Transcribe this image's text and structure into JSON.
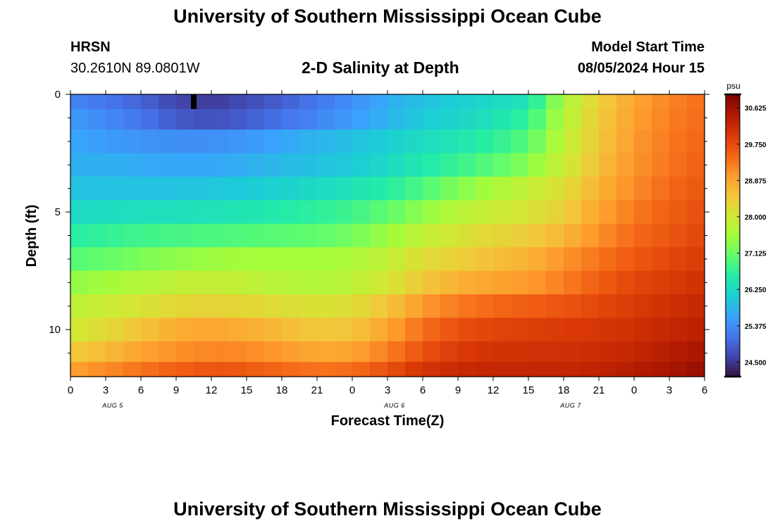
{
  "header": {
    "title": "University of Southern Mississippi Ocean Cube",
    "station": "HRSN",
    "coordinates": "30.2610N  89.0801W",
    "subtitle": "2-D Salinity at Depth",
    "model_start_label": "Model Start Time",
    "model_start_value": "08/05/2024 Hour 15",
    "bottom_title": "University of Southern Mississippi Ocean Cube"
  },
  "chart_data": {
    "type": "heatmap",
    "xlabel": "Forecast Time(Z)",
    "ylabel": "Depth (ft)",
    "x_tick_labels": [
      "0",
      "3",
      "6",
      "9",
      "12",
      "15",
      "18",
      "21",
      "0",
      "3",
      "6",
      "9",
      "12",
      "15",
      "18",
      "21",
      "0",
      "3",
      "6"
    ],
    "date_labels": [
      {
        "label": "AUG 5",
        "at_tick": 1.2
      },
      {
        "label": "AUG 6",
        "at_tick": 9.2
      },
      {
        "label": "AUG 7",
        "at_tick": 14.2
      }
    ],
    "y_tick_labels": [
      "0",
      "5",
      "10"
    ],
    "y_tick_values": [
      0,
      5,
      10
    ],
    "ylim": [
      0,
      12
    ],
    "xlim_hours": [
      0,
      54
    ],
    "depth_levels_ft": [
      0.25,
      1.0,
      2.0,
      3.0,
      4.0,
      5.0,
      6.0,
      7.0,
      8.0,
      9.0,
      10.0,
      11.0,
      11.75
    ],
    "time_hours": [
      0,
      3,
      6,
      9,
      12,
      15,
      18,
      21,
      24,
      27,
      30,
      33,
      36,
      39,
      42,
      45,
      48,
      51,
      54
    ],
    "salinity_psu": [
      [
        25.3,
        25.15,
        24.95,
        24.65,
        24.55,
        24.7,
        24.9,
        25.15,
        25.4,
        25.7,
        25.95,
        26.1,
        26.25,
        26.4,
        27.6,
        28.4,
        28.9,
        29.2,
        29.4
      ],
      [
        25.5,
        25.35,
        25.15,
        24.85,
        24.75,
        24.9,
        25.1,
        25.3,
        25.55,
        25.8,
        26.05,
        26.2,
        26.4,
        26.7,
        27.7,
        28.45,
        28.95,
        29.25,
        29.45
      ],
      [
        25.65,
        25.55,
        25.45,
        25.4,
        25.4,
        25.5,
        25.65,
        25.8,
        25.95,
        26.1,
        26.3,
        26.45,
        26.65,
        27.0,
        27.8,
        28.5,
        29.0,
        29.3,
        29.5
      ],
      [
        25.75,
        25.75,
        25.7,
        25.65,
        25.65,
        25.75,
        25.85,
        25.95,
        26.05,
        26.25,
        26.5,
        26.75,
        27.0,
        27.35,
        27.95,
        28.6,
        29.05,
        29.35,
        29.55
      ],
      [
        25.95,
        25.95,
        25.95,
        25.95,
        26.0,
        26.05,
        26.15,
        26.25,
        26.4,
        26.6,
        26.9,
        27.3,
        27.6,
        27.9,
        28.2,
        28.75,
        29.15,
        29.45,
        29.65
      ],
      [
        26.25,
        26.3,
        26.35,
        26.35,
        26.4,
        26.45,
        26.55,
        26.65,
        26.8,
        27.05,
        27.4,
        27.75,
        27.95,
        28.1,
        28.4,
        28.9,
        29.3,
        29.55,
        29.75
      ],
      [
        26.6,
        26.7,
        26.8,
        26.85,
        26.9,
        26.95,
        27.0,
        27.05,
        27.2,
        27.5,
        27.85,
        28.1,
        28.3,
        28.45,
        28.7,
        29.1,
        29.45,
        29.65,
        29.85
      ],
      [
        26.95,
        27.1,
        27.25,
        27.4,
        27.5,
        27.55,
        27.55,
        27.55,
        27.65,
        27.85,
        28.2,
        28.4,
        28.6,
        28.75,
        29.05,
        29.35,
        29.6,
        29.8,
        29.95
      ],
      [
        27.4,
        27.55,
        27.7,
        27.85,
        27.9,
        27.85,
        27.75,
        27.7,
        27.8,
        28.05,
        28.5,
        28.75,
        28.9,
        29.0,
        29.25,
        29.55,
        29.8,
        29.95,
        30.1
      ],
      [
        27.8,
        27.95,
        28.1,
        28.3,
        28.35,
        28.3,
        28.2,
        28.1,
        28.2,
        28.55,
        29.0,
        29.3,
        29.45,
        29.55,
        29.65,
        29.8,
        29.95,
        30.1,
        30.25
      ],
      [
        28.0,
        28.25,
        28.55,
        28.8,
        28.9,
        28.8,
        28.65,
        28.5,
        28.55,
        28.9,
        29.4,
        29.7,
        29.85,
        29.9,
        29.95,
        30.0,
        30.1,
        30.25,
        30.35
      ],
      [
        28.45,
        28.65,
        28.9,
        29.1,
        29.2,
        29.15,
        29.0,
        28.85,
        28.9,
        29.25,
        29.7,
        29.95,
        30.05,
        30.1,
        30.1,
        30.15,
        30.25,
        30.4,
        30.55
      ],
      [
        28.95,
        29.15,
        29.35,
        29.55,
        29.65,
        29.6,
        29.45,
        29.35,
        29.4,
        29.7,
        30.05,
        30.2,
        30.25,
        30.25,
        30.25,
        30.3,
        30.4,
        30.55,
        30.7
      ]
    ],
    "colorbar": {
      "unit": "psu",
      "min": 24.15,
      "max": 30.95,
      "tick_labels": [
        "30.625",
        "29.750",
        "28.875",
        "28.000",
        "27.125",
        "26.250",
        "25.375",
        "24.500"
      ],
      "tick_values": [
        30.625,
        29.75,
        28.875,
        28.0,
        27.125,
        26.25,
        25.375,
        24.5
      ]
    },
    "colormap": [
      "#30123b",
      "#4145ab",
      "#4675ed",
      "#39a2fc",
      "#1bcfd4",
      "#24eca6",
      "#61fc6c",
      "#a4fc3b",
      "#d1e834",
      "#f3c63a",
      "#fe9b2d",
      "#f36315",
      "#d93806",
      "#b11901",
      "#7a0402"
    ],
    "missing_cell": {
      "time_hour": 10.5,
      "depth_ft": 0.25,
      "color": "#000000"
    }
  }
}
